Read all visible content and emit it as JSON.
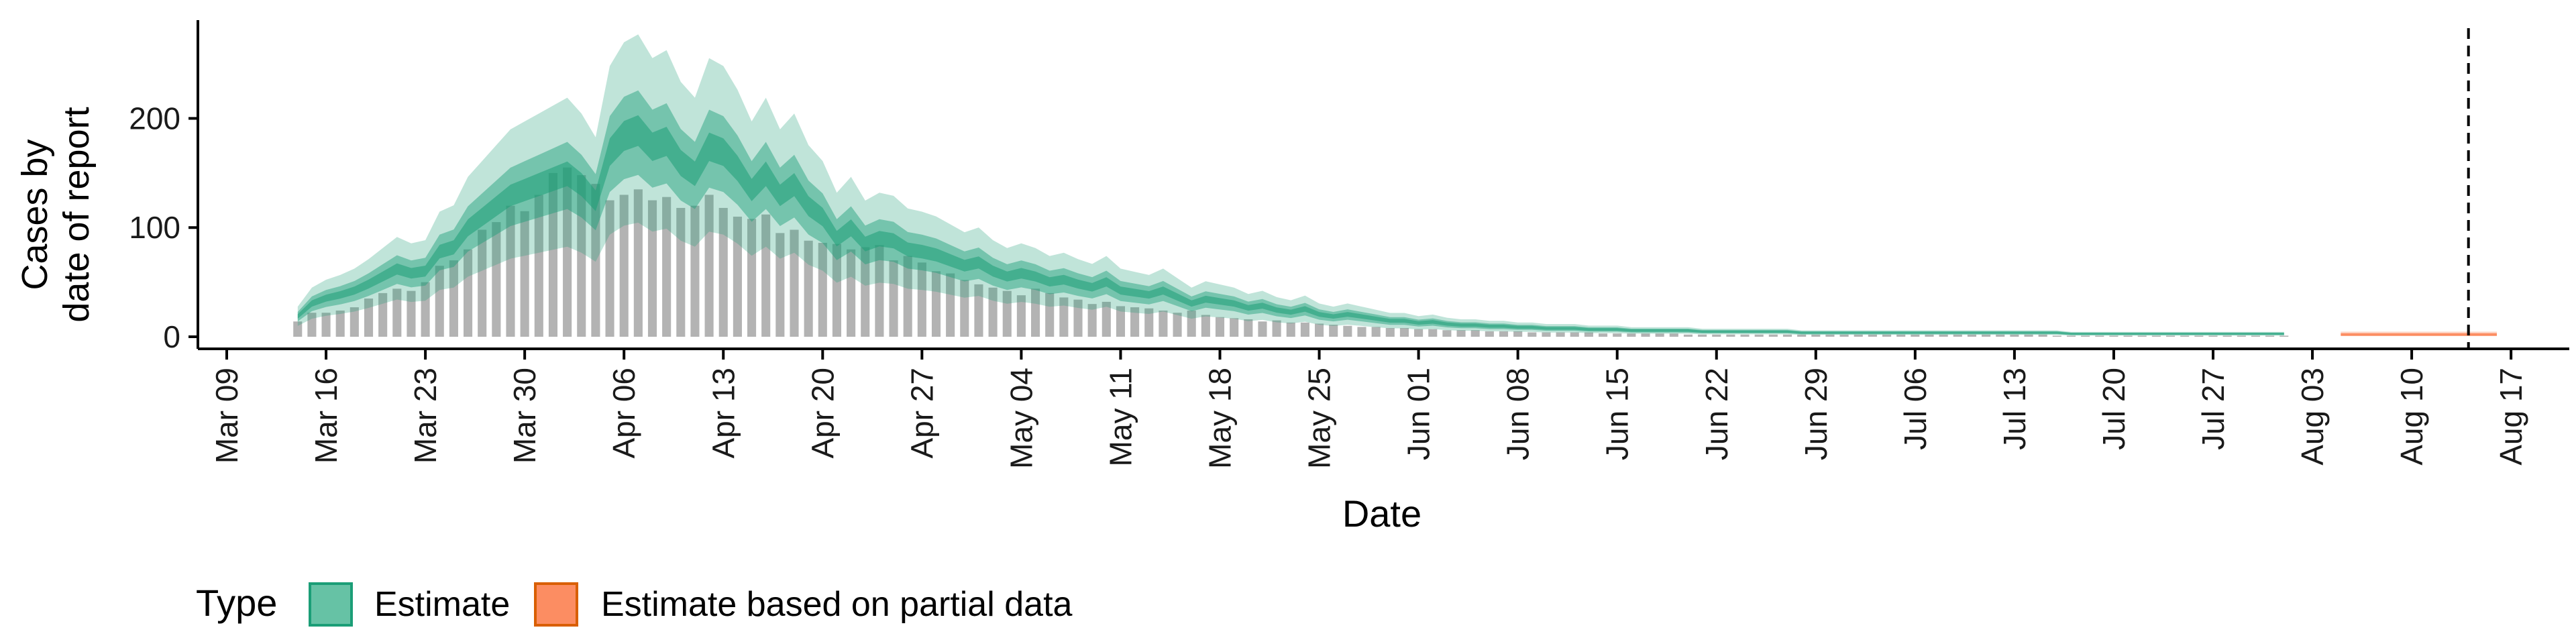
{
  "chart_data": {
    "type": "bar",
    "xlabel": "Date",
    "ylabel_lines": [
      "Cases by",
      "date of report"
    ],
    "ylim": [
      0,
      290
    ],
    "yticks": [
      0,
      100,
      200
    ],
    "xticks": [
      "Mar 09",
      "Mar 16",
      "Mar 23",
      "Mar 30",
      "Apr 06",
      "Apr 13",
      "Apr 20",
      "Apr 27",
      "May 04",
      "May 11",
      "May 18",
      "May 25",
      "Jun 01",
      "Jun 08",
      "Jun 15",
      "Jun 22",
      "Jun 29",
      "Jul 06",
      "Jul 13",
      "Jul 20",
      "Jul 27",
      "Aug 03",
      "Aug 10",
      "Aug 17"
    ],
    "x_start": "2020-03-14",
    "reported_cases": [
      14,
      22,
      22,
      24,
      27,
      35,
      40,
      44,
      42,
      50,
      65,
      70,
      80,
      98,
      105,
      120,
      115,
      130,
      150,
      155,
      148,
      140,
      125,
      130,
      135,
      125,
      128,
      118,
      120,
      130,
      118,
      110,
      108,
      112,
      95,
      98,
      88,
      86,
      85,
      80,
      82,
      84,
      70,
      74,
      68,
      60,
      58,
      52,
      48,
      45,
      42,
      38,
      44,
      40,
      36,
      34,
      30,
      32,
      28,
      27,
      26,
      24,
      22,
      24,
      20,
      18,
      17,
      16,
      14,
      15,
      13,
      13,
      12,
      11,
      10,
      9,
      9,
      8,
      8,
      7,
      7,
      6,
      6,
      6,
      5,
      5,
      5,
      4,
      4,
      4,
      4,
      4,
      3,
      3,
      3,
      3,
      3,
      3,
      2,
      2,
      2,
      2,
      2,
      2,
      2,
      2,
      2,
      2,
      2,
      2,
      2,
      2,
      2,
      2,
      2,
      2,
      2,
      2,
      2,
      2,
      2,
      2,
      2,
      2,
      1,
      1,
      1,
      1,
      1,
      1,
      1,
      1,
      1,
      1,
      1,
      1,
      1,
      1,
      1,
      1,
      1
    ],
    "estimate": {
      "median": [
        18,
        30,
        35,
        38,
        42,
        48,
        55,
        62,
        58,
        60,
        78,
        82,
        100,
        110,
        120,
        130,
        135,
        140,
        145,
        150,
        140,
        125,
        170,
        185,
        190,
        175,
        180,
        160,
        150,
        175,
        170,
        155,
        135,
        150,
        130,
        140,
        120,
        110,
        90,
        100,
        85,
        90,
        88,
        80,
        78,
        75,
        70,
        65,
        68,
        60,
        55,
        58,
        55,
        50,
        52,
        48,
        45,
        50,
        42,
        40,
        38,
        42,
        36,
        30,
        34,
        32,
        30,
        26,
        28,
        24,
        22,
        25,
        20,
        18,
        20,
        18,
        16,
        14,
        14,
        12,
        13,
        11,
        10,
        10,
        9,
        9,
        8,
        8,
        7,
        7,
        7,
        6,
        6,
        6,
        5,
        5,
        5,
        5,
        5,
        4,
        4,
        4,
        4,
        4,
        4,
        4,
        3,
        3,
        3,
        3,
        3,
        3,
        3,
        3,
        3,
        3,
        3,
        3,
        3,
        3,
        3,
        3,
        3,
        3,
        3,
        2,
        2,
        2,
        2,
        2,
        2,
        2,
        2,
        2,
        2,
        2,
        2,
        2,
        2,
        2,
        2
      ],
      "partial_from_index": 142,
      "partial_values": [
        2,
        2,
        2,
        2,
        2,
        2,
        2,
        2,
        2,
        2,
        2,
        2
      ]
    },
    "vline_date": "Aug 14",
    "legend": {
      "title": "Type",
      "items": [
        {
          "label": "Estimate",
          "fill": "#66c2a5",
          "stroke": "#1b9e77"
        },
        {
          "label": "Estimate based on partial data",
          "fill": "#fc8d62",
          "stroke": "#d95f02"
        }
      ]
    },
    "colors": {
      "bars": "#b3b3b3",
      "estimate": "#1b9e77",
      "partial": "#fc8d62"
    }
  }
}
